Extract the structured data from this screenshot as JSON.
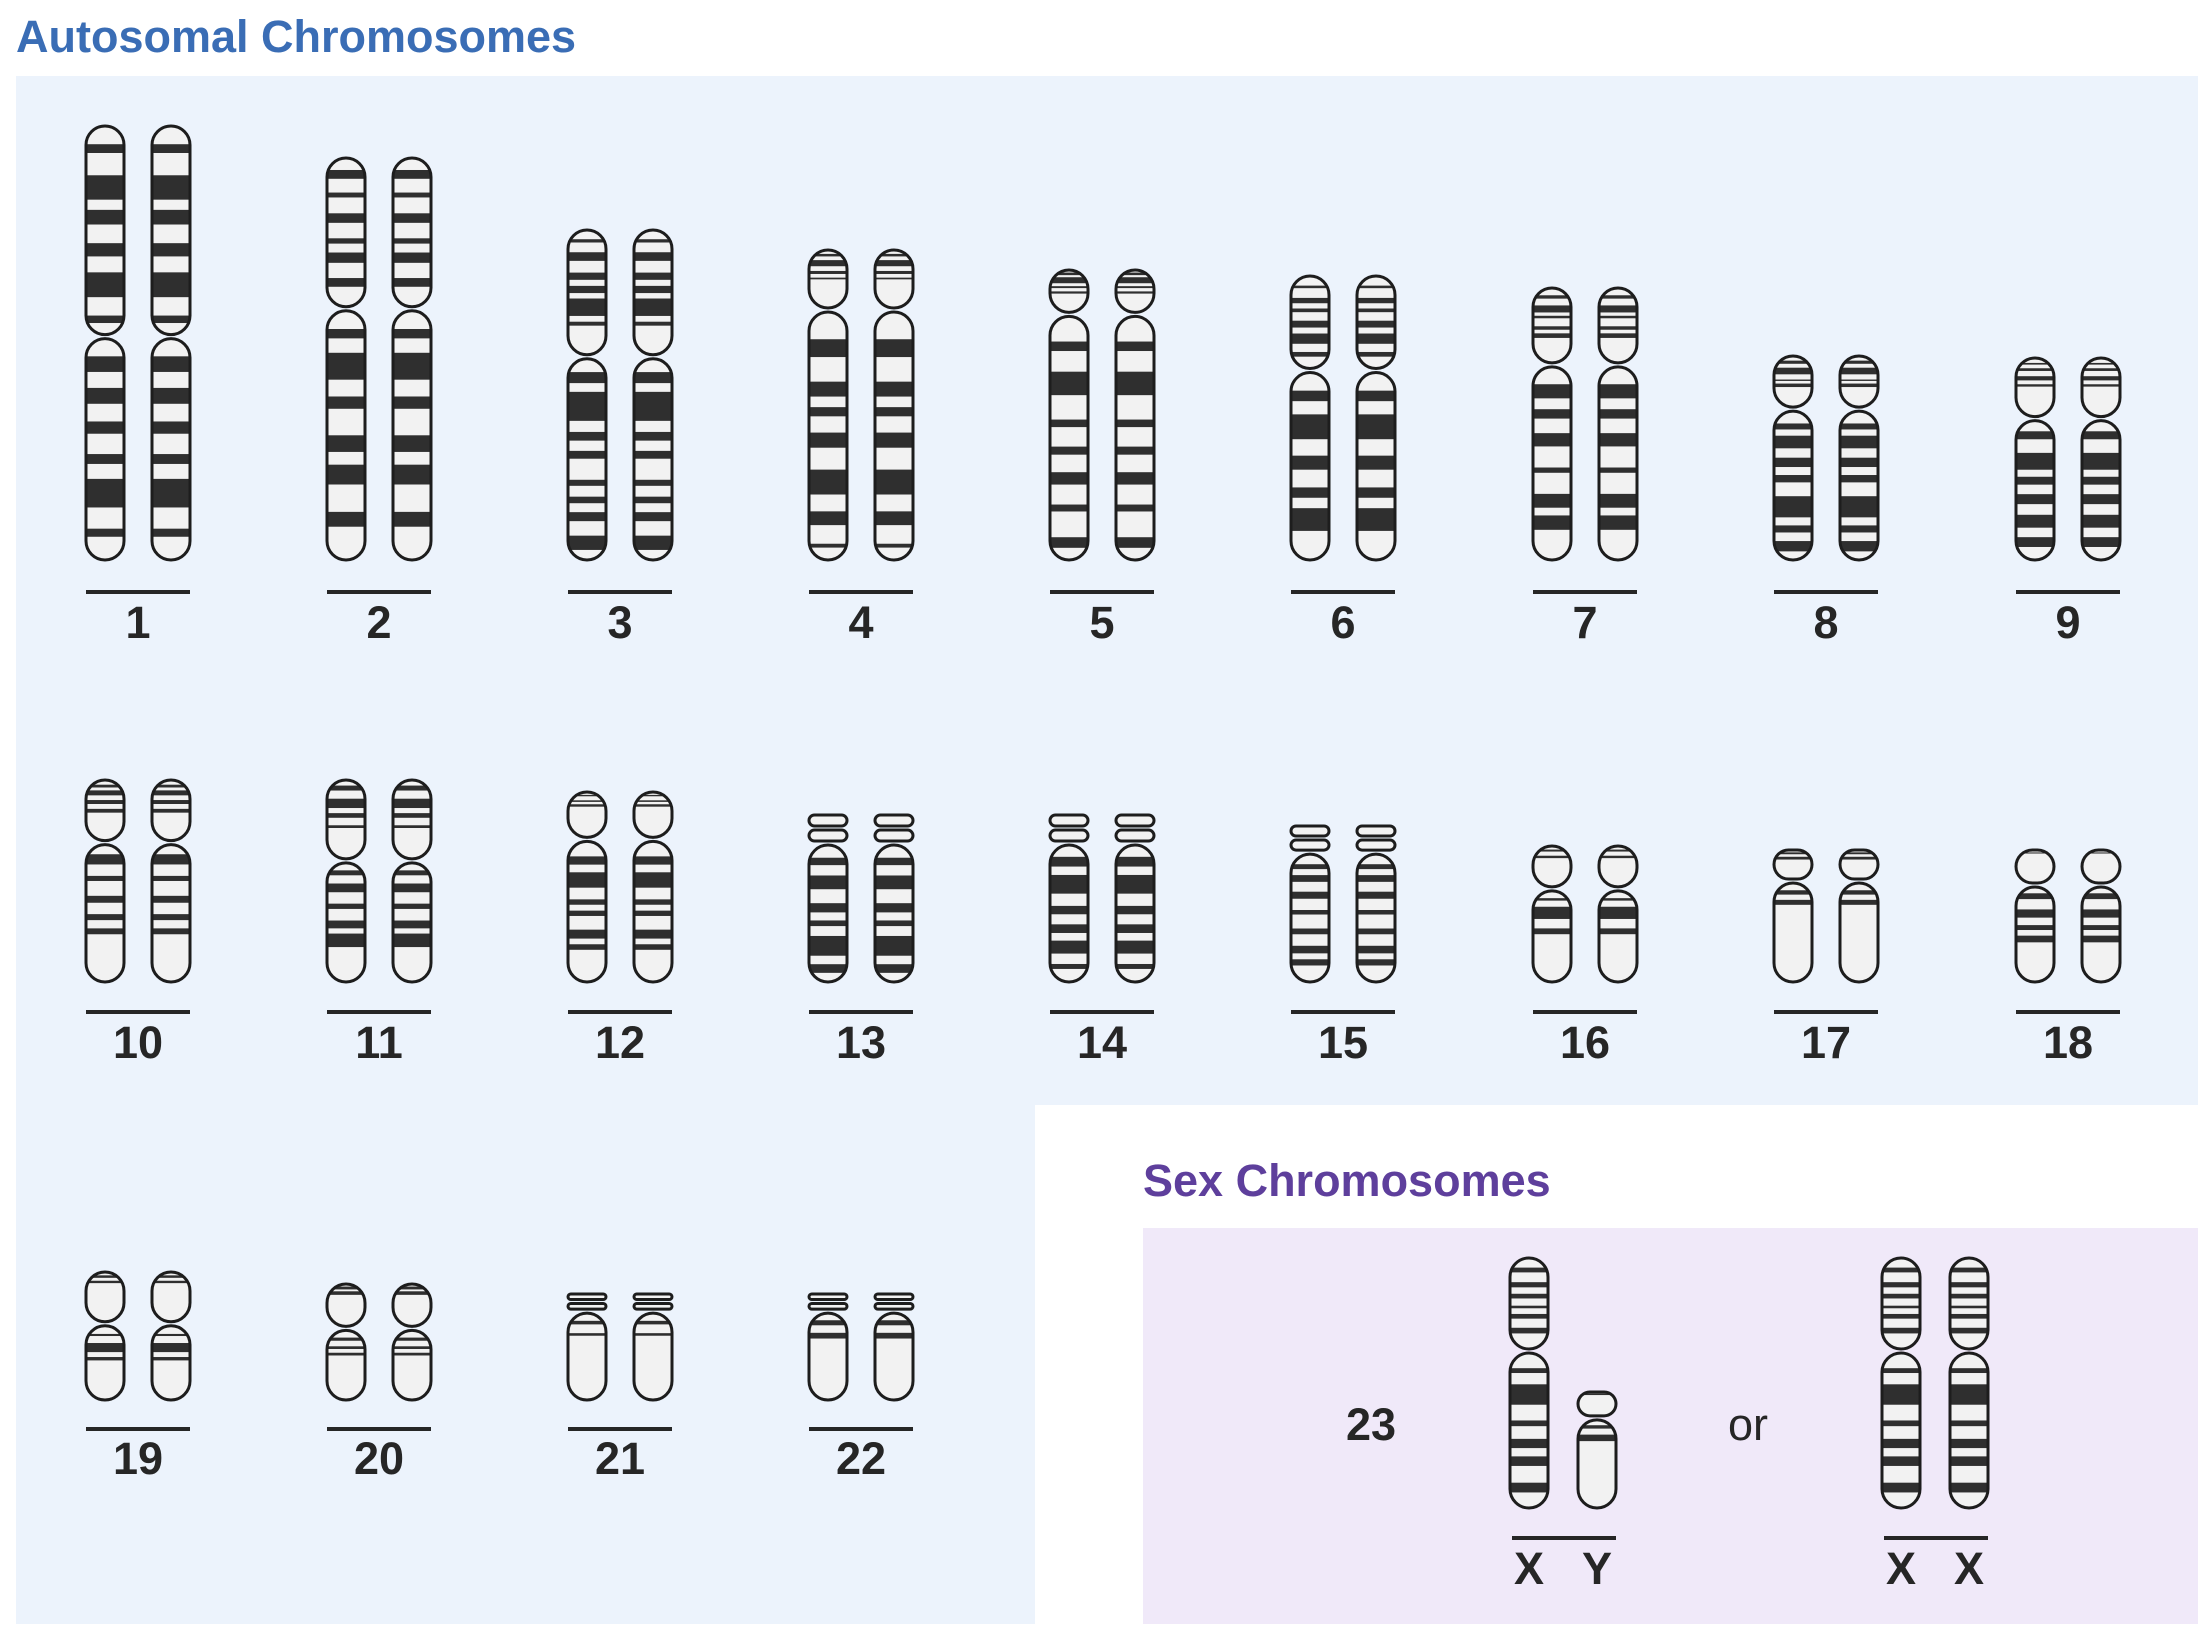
{
  "autosomal_title": "Autosomal Chromosomes",
  "sex_title": "Sex Chromosomes",
  "colors": {
    "autosome_bg": "#ecf3fc",
    "sex_bg": "#f0e9f9",
    "band_dark": "#2f2f2f",
    "band_light": "#f2f2f2",
    "autosome_title": "#3a6db5",
    "sex_title": "#5e3f9c"
  },
  "autosome_labels": [
    "1",
    "2",
    "3",
    "4",
    "5",
    "6",
    "7",
    "8",
    "9",
    "10",
    "11",
    "12",
    "13",
    "14",
    "15",
    "16",
    "17",
    "18",
    "19",
    "20",
    "21",
    "22"
  ],
  "sex_pair_number": "23",
  "sex_option_male": [
    "X",
    "Y"
  ],
  "or_label": "or",
  "sex_option_female": [
    "X",
    "X"
  ]
}
